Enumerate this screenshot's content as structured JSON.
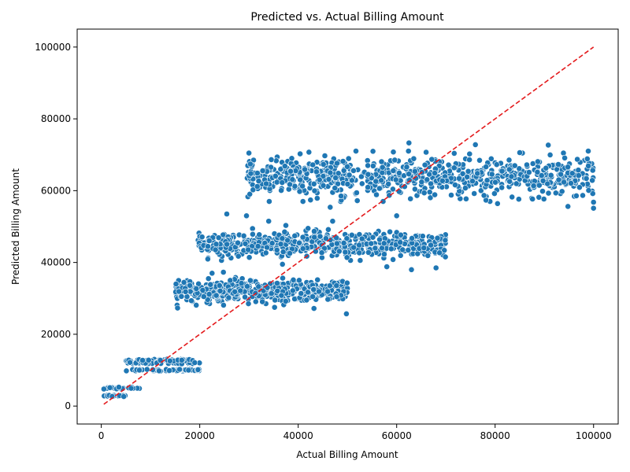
{
  "chart_data": {
    "type": "scatter",
    "title": "Predicted vs. Actual Billing Amount",
    "xlabel": "Actual Billing Amount",
    "ylabel": "Predicted Billing Amount",
    "xlim": [
      -4900,
      105000
    ],
    "ylim": [
      -5000,
      105000
    ],
    "xticks": [
      0,
      20000,
      40000,
      60000,
      80000,
      100000
    ],
    "yticks": [
      0,
      20000,
      40000,
      60000,
      80000,
      100000
    ],
    "xtick_labels": [
      "0",
      "20000",
      "40000",
      "60000",
      "80000",
      "100000"
    ],
    "ytick_labels": [
      "0",
      "20000",
      "40000",
      "60000",
      "80000",
      "100000"
    ],
    "grid": false,
    "point_color": "#1f77b4",
    "reference_line": {
      "style": "dashed",
      "color": "#e41a1c",
      "x": [
        500,
        100000
      ],
      "y": [
        500,
        100000
      ]
    },
    "clusters": [
      {
        "x_range": [
          500,
          5000
        ],
        "y_levels": [
          2800,
          5000
        ],
        "count": 40
      },
      {
        "x_range": [
          5000,
          8000
        ],
        "y_levels": [
          5000
        ],
        "count": 8
      },
      {
        "x_range": [
          5000,
          20000
        ],
        "y_levels": [
          10000,
          12000,
          12800
        ],
        "count": 140
      },
      {
        "x_range": [
          15000,
          50000
        ],
        "y_levels": [
          32000
        ],
        "spread": 1500,
        "count": 480
      },
      {
        "x_range": [
          19500,
          70000
        ],
        "y_levels": [
          45000
        ],
        "spread": 1700,
        "count": 560
      },
      {
        "x_range": [
          29500,
          100000
        ],
        "y_levels": [
          64000
        ],
        "spread": 2700,
        "count": 800
      }
    ],
    "outliers": [
      {
        "x": 25500,
        "y": 53500
      },
      {
        "x": 29500,
        "y": 53000
      },
      {
        "x": 34000,
        "y": 51500
      },
      {
        "x": 37500,
        "y": 50300
      },
      {
        "x": 42000,
        "y": 49500
      },
      {
        "x": 47000,
        "y": 51500
      },
      {
        "x": 60000,
        "y": 53000
      },
      {
        "x": 58000,
        "y": 38800
      },
      {
        "x": 63000,
        "y": 38000
      },
      {
        "x": 68000,
        "y": 38500
      },
      {
        "x": 36800,
        "y": 39500
      },
      {
        "x": 35200,
        "y": 27500
      },
      {
        "x": 15500,
        "y": 27300
      },
      {
        "x": 43200,
        "y": 27200
      },
      {
        "x": 49800,
        "y": 25700
      },
      {
        "x": 22500,
        "y": 37000
      },
      {
        "x": 24800,
        "y": 37300
      },
      {
        "x": 46500,
        "y": 55400
      },
      {
        "x": 52000,
        "y": 57200
      },
      {
        "x": 94800,
        "y": 55600
      },
      {
        "x": 100000,
        "y": 55100
      },
      {
        "x": 100000,
        "y": 56800
      },
      {
        "x": 80500,
        "y": 56400
      },
      {
        "x": 62500,
        "y": 73300
      },
      {
        "x": 90800,
        "y": 72700
      },
      {
        "x": 76000,
        "y": 72800
      },
      {
        "x": 85000,
        "y": 70600
      }
    ]
  }
}
